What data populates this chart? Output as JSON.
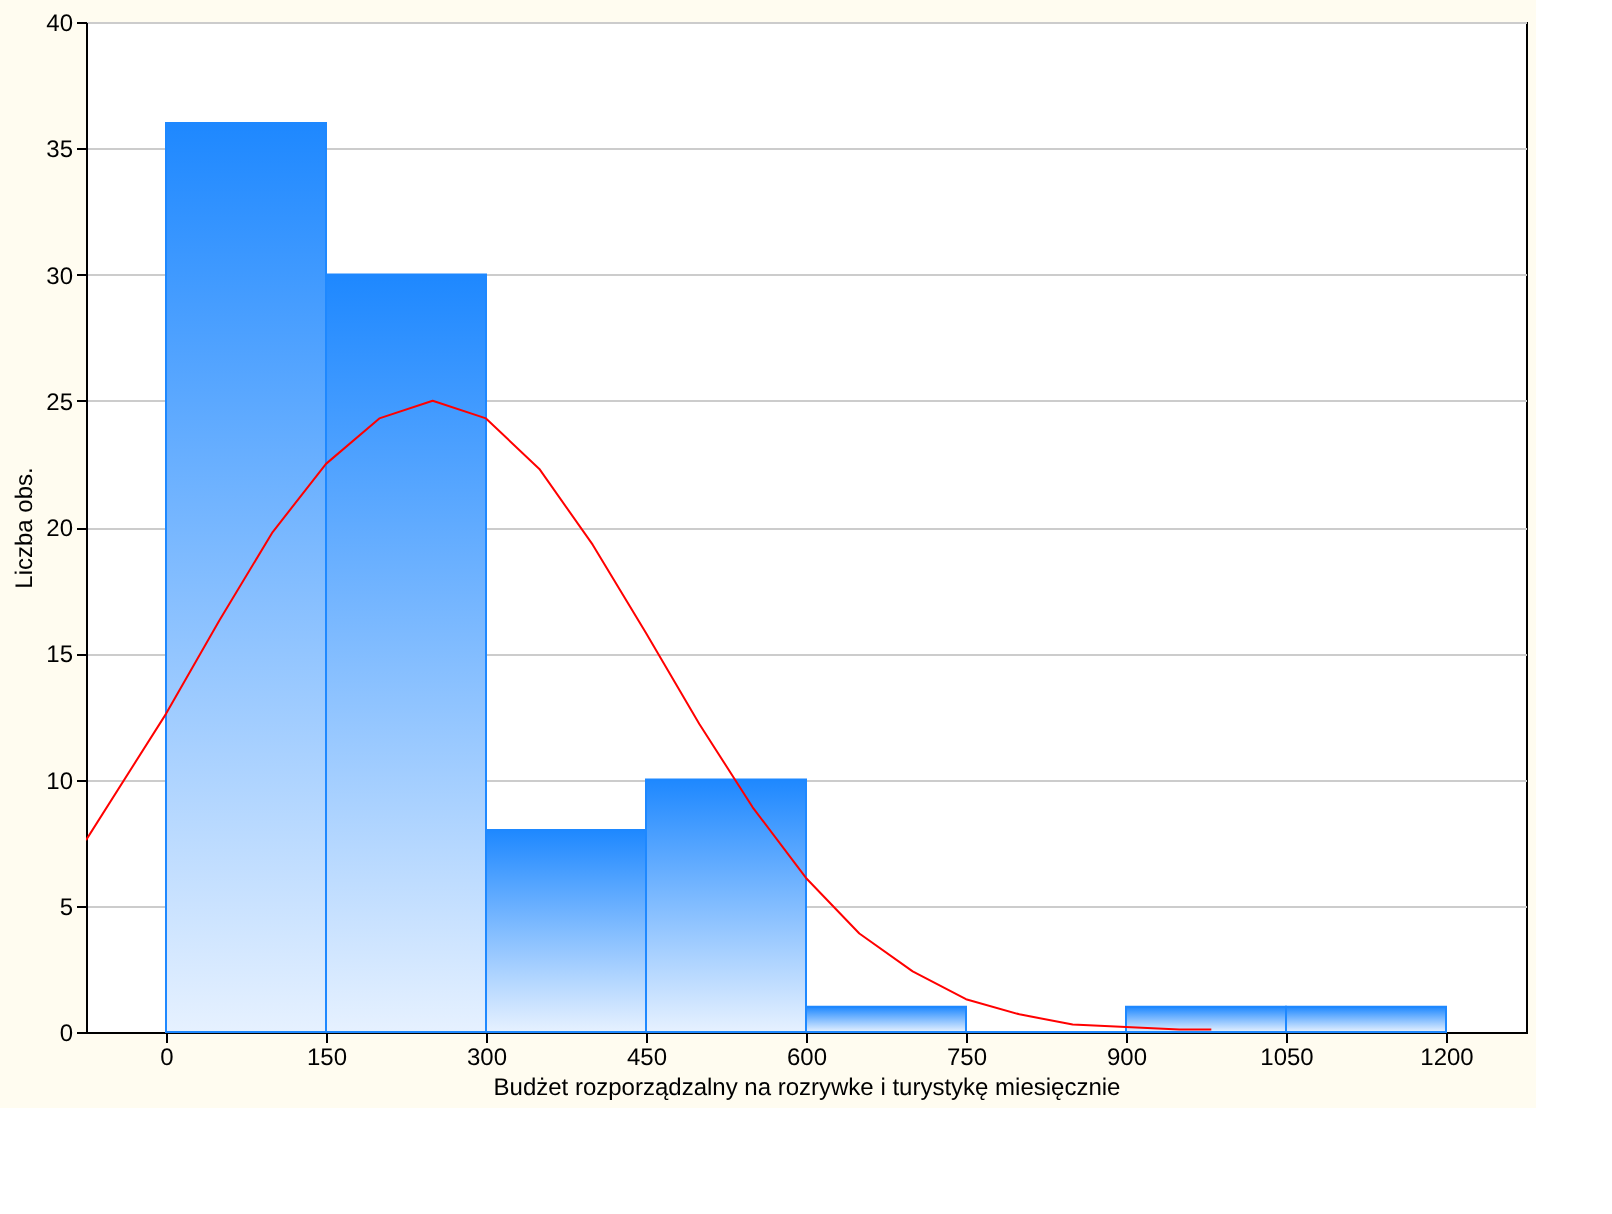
{
  "chart_data": {
    "type": "histogram",
    "xlabel": "Budżet rozporządzalny na rozrywke i turystykę miesięcznie",
    "ylabel": "Liczba obs.",
    "bins": [
      0,
      150,
      300,
      450,
      600,
      750,
      900,
      1050,
      1200
    ],
    "values": [
      36,
      30,
      8,
      10,
      1,
      0,
      1,
      1
    ],
    "color": "#1e88ff",
    "series": [
      {
        "type": "line",
        "color": "#ff0000",
        "x": [
          -75,
          0,
          50,
          100,
          150,
          200,
          250,
          300,
          350,
          400,
          450,
          500,
          550,
          600,
          650,
          700,
          750,
          800,
          850,
          900,
          950,
          980
        ],
        "values": [
          7.6,
          12.6,
          16.3,
          19.8,
          22.5,
          24.3,
          25,
          24.3,
          22.3,
          19.3,
          15.8,
          12.2,
          8.9,
          6.1,
          3.9,
          2.4,
          1.3,
          0.7,
          0.3,
          0.2,
          0.1,
          0.1
        ]
      }
    ],
    "xlim": [
      -75,
      1275
    ],
    "xticks": [
      0,
      150,
      300,
      450,
      600,
      750,
      900,
      1050,
      1200
    ],
    "ylim": [
      0,
      40
    ],
    "yticks": [
      0,
      5,
      10,
      15,
      20,
      25,
      30,
      35,
      40
    ],
    "grid": "y"
  }
}
